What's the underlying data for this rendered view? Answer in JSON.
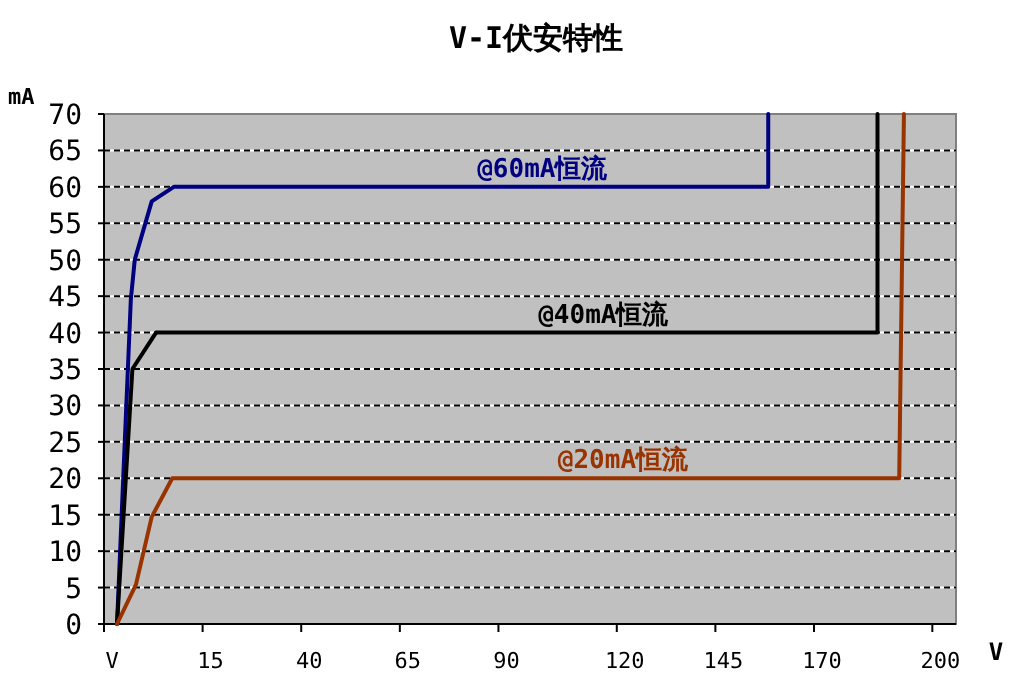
{
  "chart_data": {
    "type": "line",
    "title": "V-I伏安特性",
    "xlabel": "V",
    "ylabel": "mA",
    "xlim": [
      -10,
      206
    ],
    "ylim": [
      0,
      70
    ],
    "xticks": [
      {
        "value": -10,
        "label": "V"
      },
      15,
      40,
      65,
      90,
      120,
      145,
      170,
      200
    ],
    "yticks": [
      0,
      5,
      10,
      15,
      20,
      25,
      30,
      35,
      40,
      45,
      50,
      55,
      60,
      65,
      70
    ],
    "grid": "y",
    "legend": false,
    "marker": "none",
    "line_style": "solid",
    "series": [
      {
        "name": "@60mA恒流",
        "color": "#000080",
        "x": [
          -6.7,
          -3.2,
          -2.2,
          2.1,
          7.7,
          158.4,
          158.4
        ],
        "values": [
          0,
          44.5,
          50,
          58,
          60,
          60,
          70
        ]
      },
      {
        "name": "@40mA恒流",
        "color": "#000000",
        "x": [
          -6.7,
          -2.8,
          3.2,
          186.1,
          186.1
        ],
        "values": [
          0,
          35,
          40,
          40,
          70
        ]
      },
      {
        "name": "@20mA恒流",
        "color": "#993300",
        "x": [
          -6.7,
          -1.9,
          2.1,
          7.3,
          191.6,
          192.8
        ],
        "values": [
          0,
          5.4,
          14.7,
          20,
          20,
          70
        ]
      }
    ]
  }
}
